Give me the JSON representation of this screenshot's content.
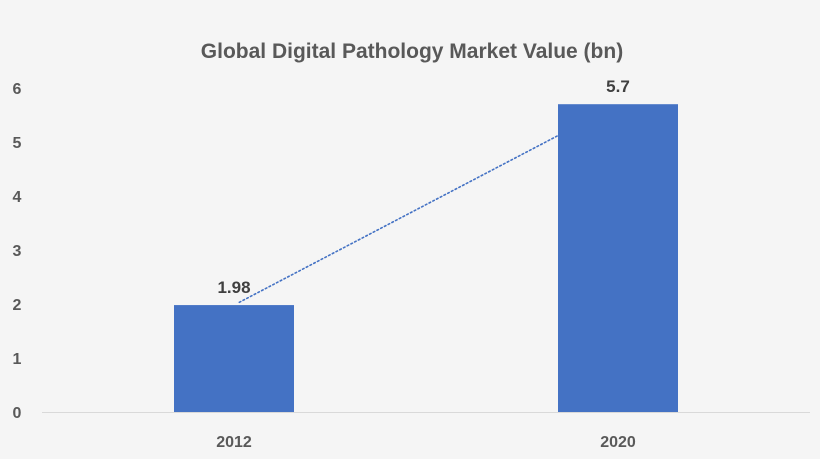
{
  "chart_data": {
    "type": "bar",
    "title": "Global Digital Pathology Market Value (bn)",
    "xlabel": "",
    "ylabel": "",
    "categories": [
      "2012",
      "2020"
    ],
    "values": [
      1.98,
      5.7
    ],
    "data_labels": [
      "1.98",
      "5.7"
    ],
    "yticks": [
      "0",
      "1",
      "2",
      "3",
      "4",
      "5",
      "6"
    ],
    "ylim": [
      0,
      6
    ],
    "grid": false,
    "legend": "none",
    "trendline": "linear-dotted",
    "bar_color": "#4472c4",
    "trendline_color": "#4472c4",
    "background_color": "#f5f5f5",
    "text_color": "#595959",
    "axis_color": "#d9d9d9"
  }
}
